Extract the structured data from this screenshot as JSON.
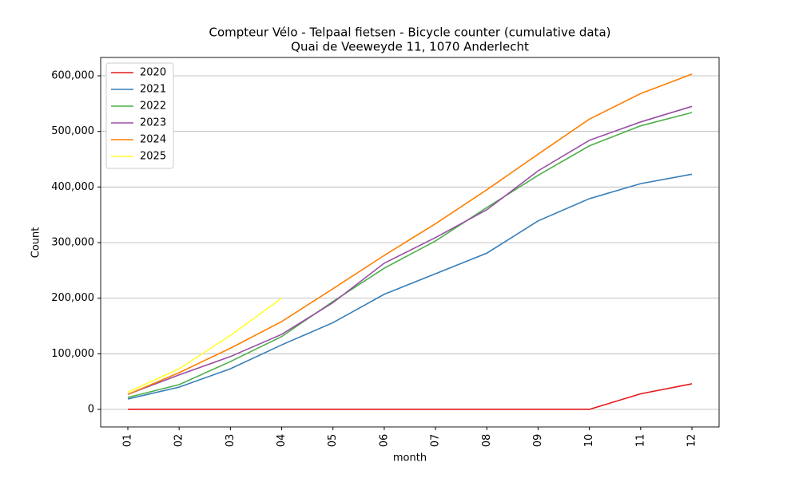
{
  "chart_data": {
    "type": "line",
    "title": "Compteur Vélo - Telpaal fietsen - Bicycle counter (cumulative data)",
    "subtitle": "Quai de Veeweyde 11, 1070 Anderlecht",
    "x_label": "month",
    "y_label": "Count",
    "categories": [
      "01",
      "02",
      "03",
      "04",
      "05",
      "06",
      "07",
      "08",
      "09",
      "10",
      "11",
      "12"
    ],
    "series": [
      {
        "name": "2020",
        "color": "#e41a1c",
        "values": [
          0,
          0,
          0,
          0,
          0,
          0,
          0,
          0,
          0,
          0,
          28000,
          46000
        ]
      },
      {
        "name": "2021",
        "color": "#377eb8",
        "values": [
          18700,
          40000,
          73000,
          116000,
          156000,
          207000,
          244000,
          281000,
          339000,
          379000,
          406000,
          423000
        ]
      },
      {
        "name": "2022",
        "color": "#4daf4a",
        "values": [
          21500,
          44500,
          86000,
          131000,
          194000,
          254000,
          303000,
          363000,
          421000,
          474000,
          510000,
          534000
        ]
      },
      {
        "name": "2023",
        "color": "#984ea3",
        "values": [
          27000,
          62000,
          95000,
          135000,
          192000,
          263000,
          309000,
          359000,
          429000,
          484000,
          517000,
          545000
        ]
      },
      {
        "name": "2024",
        "color": "#ff7f00",
        "values": [
          27000,
          66000,
          110000,
          158000,
          217000,
          277000,
          334000,
          395000,
          459000,
          522000,
          568000,
          603000
        ]
      },
      {
        "name": "2025",
        "color": "#ffff33",
        "values": [
          31000,
          73000,
          133000,
          200000,
          null,
          null,
          null,
          null,
          null,
          null,
          null,
          null
        ]
      }
    ],
    "ylim": [
      -31600,
      633000
    ],
    "yticks": [
      0,
      {
        "value": 100000,
        "label": "100,000"
      },
      {
        "value": 200000,
        "label": "200,000"
      },
      {
        "value": 300000,
        "label": "300,000"
      },
      {
        "value": 400000,
        "label": "400,000"
      },
      {
        "value": 500000,
        "label": "500,000"
      },
      {
        "value": 600000,
        "label": "600,000"
      }
    ],
    "grid": true,
    "legend": "upper left"
  }
}
